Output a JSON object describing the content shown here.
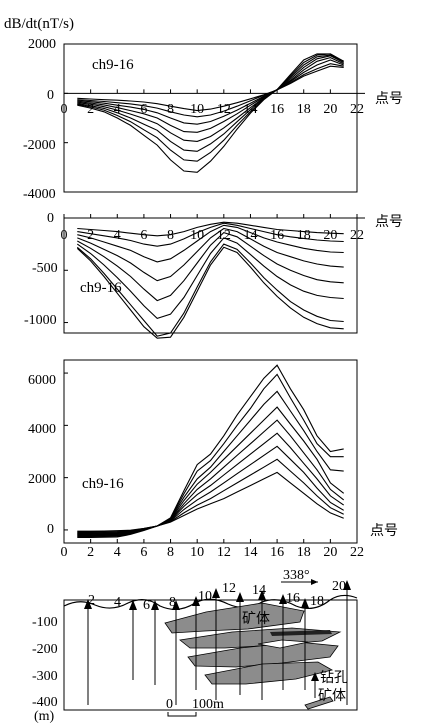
{
  "figure": {
    "y_axis_label": "dB/dt(nT/s)",
    "x_axis_label": "点号",
    "panel_label": "ch9-16"
  },
  "section": {
    "depth_ticks": [
      "-100",
      "-200",
      "-300",
      "-400"
    ],
    "depth_unit": "(m)",
    "point_labels": [
      "2",
      "4",
      "6",
      "8",
      "10",
      "12",
      "14",
      "16",
      "18",
      "20"
    ],
    "azimuth": "338°",
    "ore_label": "矿体",
    "legend_drill": "钻孔",
    "legend_ore": "矿体",
    "scale_zero": "0",
    "scale_label": "100m",
    "colors": {
      "ore_fill": "#8c8c8c"
    }
  },
  "chart_data": [
    {
      "type": "line",
      "title": "ch9-16",
      "xlabel": "点号",
      "ylabel": "dB/dt(nT/s)",
      "xlim": [
        0,
        22
      ],
      "ylim": [
        -4000,
        2000
      ],
      "xticks": [
        0,
        2,
        4,
        6,
        8,
        10,
        12,
        14,
        16,
        18,
        20,
        22
      ],
      "yticks": [
        2000,
        0,
        -2000,
        -4000
      ],
      "x": [
        1,
        2,
        3,
        4,
        5,
        6,
        7,
        8,
        9,
        10,
        11,
        12,
        13,
        14,
        15,
        16,
        17,
        18,
        19,
        20,
        21
      ],
      "series": [
        {
          "values": [
            -200,
            -230,
            -260,
            -280,
            -310,
            -350,
            -420,
            -520,
            -620,
            -700,
            -640,
            -520,
            -380,
            -220,
            -60,
            140,
            400,
            700,
            900,
            1100,
            1050
          ]
        },
        {
          "values": [
            -260,
            -290,
            -330,
            -380,
            -430,
            -500,
            -600,
            -750,
            -880,
            -950,
            -880,
            -720,
            -520,
            -300,
            -80,
            140,
            430,
            760,
            1000,
            1200,
            1100
          ]
        },
        {
          "values": [
            -300,
            -340,
            -400,
            -480,
            -560,
            -650,
            -790,
            -1000,
            -1200,
            -1250,
            -1140,
            -930,
            -680,
            -400,
            -120,
            150,
            480,
            850,
            1150,
            1350,
            1150
          ]
        },
        {
          "values": [
            -340,
            -390,
            -470,
            -580,
            -700,
            -830,
            -1000,
            -1300,
            -1550,
            -1580,
            -1420,
            -1140,
            -830,
            -480,
            -150,
            150,
            520,
            950,
            1300,
            1450,
            1200
          ]
        },
        {
          "values": [
            -380,
            -440,
            -540,
            -680,
            -840,
            -1020,
            -1230,
            -1600,
            -1900,
            -1950,
            -1750,
            -1400,
            -1000,
            -580,
            -180,
            150,
            580,
            1050,
            1400,
            1520,
            1250
          ]
        },
        {
          "values": [
            -420,
            -500,
            -610,
            -790,
            -1000,
            -1250,
            -1500,
            -1950,
            -2300,
            -2350,
            -2050,
            -1650,
            -1150,
            -660,
            -210,
            150,
            640,
            1150,
            1480,
            1550,
            1300
          ]
        },
        {
          "values": [
            -450,
            -550,
            -680,
            -900,
            -1150,
            -1480,
            -1800,
            -2300,
            -2700,
            -2750,
            -2400,
            -1900,
            -1300,
            -740,
            -240,
            150,
            700,
            1250,
            1550,
            1600,
            1300
          ]
        },
        {
          "values": [
            -480,
            -600,
            -750,
            -1000,
            -1300,
            -1700,
            -2100,
            -2700,
            -3150,
            -3200,
            -2750,
            -2150,
            -1450,
            -800,
            -260,
            150,
            760,
            1350,
            1600,
            1600,
            1300
          ]
        }
      ]
    },
    {
      "type": "line",
      "title": "ch9-16",
      "xlabel": "点号",
      "ylim": [
        -1100,
        0
      ],
      "xlim": [
        0,
        22
      ],
      "xticks": [
        0,
        2,
        4,
        6,
        8,
        10,
        12,
        14,
        16,
        18,
        20,
        22
      ],
      "yticks": [
        0,
        -500,
        -1000
      ],
      "x": [
        1,
        2,
        3,
        4,
        5,
        6,
        7,
        8,
        9,
        10,
        11,
        12,
        13,
        14,
        15,
        16,
        17,
        18,
        19,
        20,
        21
      ],
      "series": [
        {
          "values": [
            -100,
            -110,
            -120,
            -130,
            -145,
            -160,
            -170,
            -160,
            -130,
            -90,
            -60,
            -40,
            -50,
            -70,
            -90,
            -110,
            -120,
            -130,
            -140,
            -145,
            -150
          ]
        },
        {
          "values": [
            -130,
            -150,
            -170,
            -190,
            -215,
            -250,
            -270,
            -250,
            -200,
            -140,
            -90,
            -50,
            -70,
            -100,
            -130,
            -160,
            -180,
            -195,
            -210,
            -220,
            -225
          ]
        },
        {
          "values": [
            -160,
            -190,
            -230,
            -270,
            -310,
            -370,
            -420,
            -390,
            -310,
            -220,
            -130,
            -70,
            -90,
            -140,
            -190,
            -230,
            -260,
            -290,
            -310,
            -325,
            -330
          ]
        },
        {
          "values": [
            -190,
            -240,
            -300,
            -360,
            -430,
            -520,
            -600,
            -560,
            -450,
            -320,
            -190,
            -100,
            -130,
            -200,
            -270,
            -330,
            -370,
            -410,
            -440,
            -460,
            -470
          ]
        },
        {
          "values": [
            -220,
            -290,
            -370,
            -460,
            -560,
            -680,
            -790,
            -740,
            -600,
            -430,
            -260,
            -140,
            -180,
            -270,
            -360,
            -440,
            -500,
            -550,
            -590,
            -610,
            -620
          ]
        },
        {
          "values": [
            -250,
            -340,
            -450,
            -570,
            -700,
            -840,
            -960,
            -920,
            -760,
            -550,
            -340,
            -190,
            -240,
            -350,
            -460,
            -560,
            -640,
            -700,
            -740,
            -760,
            -770
          ]
        },
        {
          "values": [
            -280,
            -390,
            -530,
            -680,
            -830,
            -980,
            -1130,
            -1100,
            -910,
            -660,
            -420,
            -250,
            -300,
            -430,
            -570,
            -690,
            -800,
            -880,
            -940,
            -980,
            -990
          ]
        },
        {
          "values": [
            -290,
            -410,
            -560,
            -720,
            -880,
            -1040,
            -1150,
            -1140,
            -950,
            -700,
            -450,
            -280,
            -330,
            -470,
            -620,
            -750,
            -860,
            -950,
            -1010,
            -1050,
            -1060
          ]
        }
      ]
    },
    {
      "type": "line",
      "title": "ch9-16",
      "xlabel": "点号",
      "xlim": [
        0,
        22
      ],
      "ylim": [
        -500,
        6500
      ],
      "xticks": [
        0,
        2,
        4,
        6,
        8,
        10,
        12,
        14,
        16,
        18,
        20,
        22
      ],
      "yticks": [
        6000,
        4000,
        2000,
        0
      ],
      "x": [
        1,
        2,
        3,
        4,
        5,
        6,
        7,
        8,
        9,
        10,
        11,
        12,
        13,
        14,
        15,
        16,
        17,
        18,
        19,
        20,
        21
      ],
      "series": [
        {
          "values": [
            -50,
            -50,
            -40,
            -30,
            -10,
            60,
            150,
            300,
            550,
            800,
            1000,
            1200,
            1450,
            1700,
            1950,
            2200,
            1800,
            1400,
            1000,
            650,
            450
          ]
        },
        {
          "values": [
            -80,
            -80,
            -70,
            -60,
            -30,
            50,
            150,
            320,
            650,
            950,
            1200,
            1500,
            1800,
            2100,
            2400,
            2700,
            2250,
            1800,
            1300,
            850,
            600
          ]
        },
        {
          "values": [
            -110,
            -110,
            -100,
            -90,
            -50,
            40,
            150,
            340,
            780,
            1150,
            1450,
            1800,
            2150,
            2500,
            2850,
            3200,
            2700,
            2200,
            1600,
            1050,
            750
          ]
        },
        {
          "values": [
            -140,
            -140,
            -130,
            -120,
            -70,
            30,
            150,
            360,
            900,
            1350,
            1700,
            2100,
            2500,
            2900,
            3300,
            3700,
            3150,
            2550,
            1950,
            1300,
            950
          ]
        },
        {
          "values": [
            -170,
            -170,
            -160,
            -150,
            -90,
            20,
            150,
            380,
            1000,
            1550,
            1950,
            2400,
            2850,
            3300,
            3750,
            4200,
            3600,
            2950,
            2300,
            1550,
            1150
          ]
        },
        {
          "values": [
            -200,
            -200,
            -190,
            -180,
            -110,
            10,
            150,
            400,
            1120,
            1750,
            2200,
            2700,
            3200,
            3700,
            4200,
            4700,
            4050,
            3400,
            2700,
            1800,
            1400
          ]
        },
        {
          "values": [
            -230,
            -230,
            -220,
            -210,
            -130,
            0,
            150,
            420,
            1250,
            1950,
            2400,
            3000,
            3600,
            4200,
            4800,
            5300,
            4550,
            3800,
            3000,
            2300,
            2250
          ]
        },
        {
          "values": [
            -260,
            -260,
            -250,
            -240,
            -150,
            -10,
            150,
            440,
            1380,
            2250,
            2650,
            3300,
            4000,
            4650,
            5400,
            5950,
            5050,
            4200,
            3300,
            2800,
            2800
          ]
        },
        {
          "values": [
            -290,
            -290,
            -280,
            -270,
            -170,
            -20,
            150,
            460,
            1500,
            2500,
            2900,
            3600,
            4400,
            5100,
            5800,
            6300,
            5400,
            4600,
            3600,
            3000,
            3100
          ]
        }
      ]
    }
  ]
}
